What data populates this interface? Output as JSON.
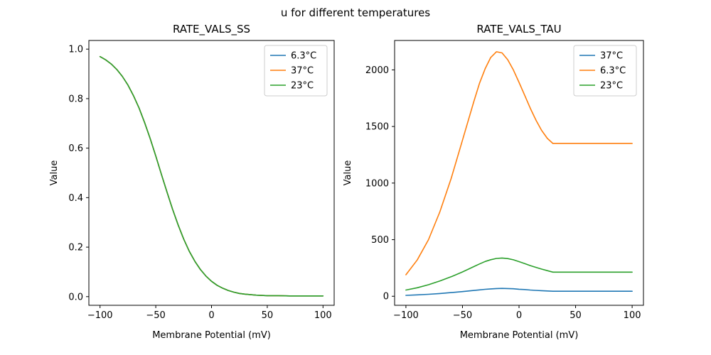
{
  "suptitle": "u for different temperatures",
  "chart_data": [
    {
      "type": "line",
      "title": "RATE_VALS_SS",
      "xlabel": "Membrane Potential (mV)",
      "ylabel": "Value",
      "xlim": [
        -110,
        110
      ],
      "ylim": [
        -0.035,
        1.035
      ],
      "grid": false,
      "legend_position": "upper right",
      "xticks": [
        {
          "v": -100,
          "label": "−100"
        },
        {
          "v": -50,
          "label": "−50"
        },
        {
          "v": 0,
          "label": "0"
        },
        {
          "v": 50,
          "label": "50"
        },
        {
          "v": 100,
          "label": "100"
        }
      ],
      "yticks": [
        {
          "v": 0.0,
          "label": "0.0"
        },
        {
          "v": 0.2,
          "label": "0.2"
        },
        {
          "v": 0.4,
          "label": "0.4"
        },
        {
          "v": 0.6,
          "label": "0.6"
        },
        {
          "v": 0.8,
          "label": "0.8"
        },
        {
          "v": 1.0,
          "label": "1.0"
        }
      ],
      "x": [
        -100,
        -95,
        -90,
        -85,
        -80,
        -75,
        -70,
        -65,
        -60,
        -55,
        -50,
        -45,
        -40,
        -35,
        -30,
        -25,
        -20,
        -15,
        -10,
        -5,
        0,
        5,
        10,
        15,
        20,
        25,
        30,
        40,
        50,
        60,
        70,
        80,
        90,
        100
      ],
      "series": [
        {
          "name": "6.3°C",
          "color": "#1f77b4",
          "y": [
            0.97,
            0.957,
            0.94,
            0.918,
            0.89,
            0.855,
            0.812,
            0.762,
            0.703,
            0.638,
            0.568,
            0.495,
            0.423,
            0.354,
            0.29,
            0.233,
            0.184,
            0.143,
            0.11,
            0.083,
            0.062,
            0.046,
            0.034,
            0.025,
            0.018,
            0.013,
            0.01,
            0.006,
            0.004,
            0.004,
            0.003,
            0.003,
            0.003,
            0.003
          ]
        },
        {
          "name": "37°C",
          "color": "#ff7f0e",
          "y": [
            0.97,
            0.957,
            0.94,
            0.918,
            0.89,
            0.855,
            0.812,
            0.762,
            0.703,
            0.638,
            0.568,
            0.495,
            0.423,
            0.354,
            0.29,
            0.233,
            0.184,
            0.143,
            0.11,
            0.083,
            0.062,
            0.046,
            0.034,
            0.025,
            0.018,
            0.013,
            0.01,
            0.006,
            0.004,
            0.004,
            0.003,
            0.003,
            0.003,
            0.003
          ]
        },
        {
          "name": "23°C",
          "color": "#2ca02c",
          "y": [
            0.97,
            0.957,
            0.94,
            0.918,
            0.89,
            0.855,
            0.812,
            0.762,
            0.703,
            0.638,
            0.568,
            0.495,
            0.423,
            0.354,
            0.29,
            0.233,
            0.184,
            0.143,
            0.11,
            0.083,
            0.062,
            0.046,
            0.034,
            0.025,
            0.018,
            0.013,
            0.01,
            0.006,
            0.004,
            0.004,
            0.003,
            0.003,
            0.003,
            0.003
          ]
        }
      ]
    },
    {
      "type": "line",
      "title": "RATE_VALS_TAU",
      "xlabel": "Membrane Potential (mV)",
      "ylabel": "Value",
      "xlim": [
        -110,
        110
      ],
      "ylim": [
        -80,
        2260
      ],
      "grid": false,
      "legend_position": "upper right",
      "xticks": [
        {
          "v": -100,
          "label": "−100"
        },
        {
          "v": -50,
          "label": "−50"
        },
        {
          "v": 0,
          "label": "0"
        },
        {
          "v": 50,
          "label": "50"
        },
        {
          "v": 100,
          "label": "100"
        }
      ],
      "yticks": [
        {
          "v": 0,
          "label": "0"
        },
        {
          "v": 500,
          "label": "500"
        },
        {
          "v": 1000,
          "label": "1000"
        },
        {
          "v": 1500,
          "label": "1500"
        },
        {
          "v": 2000,
          "label": "2000"
        }
      ],
      "x": [
        -100,
        -90,
        -80,
        -70,
        -60,
        -50,
        -40,
        -35,
        -30,
        -25,
        -20,
        -15,
        -10,
        -5,
        0,
        5,
        10,
        15,
        20,
        25,
        30,
        40,
        50,
        60,
        70,
        80,
        90,
        100
      ],
      "series": [
        {
          "name": "37°C",
          "color": "#1f77b4",
          "y": [
            8,
            12,
            17,
            24,
            32,
            41,
            51,
            56,
            61,
            65,
            68,
            69,
            68,
            66,
            62,
            59,
            55,
            52,
            49,
            47,
            44,
            44,
            44,
            44,
            44,
            44,
            44,
            44
          ]
        },
        {
          "name": "6.3°C",
          "color": "#ff7f0e",
          "y": [
            190,
            320,
            500,
            745,
            1040,
            1380,
            1720,
            1880,
            2010,
            2110,
            2160,
            2150,
            2090,
            2000,
            1890,
            1775,
            1660,
            1555,
            1465,
            1395,
            1350,
            1350,
            1350,
            1350,
            1350,
            1350,
            1350,
            1350
          ]
        },
        {
          "name": "23°C",
          "color": "#2ca02c",
          "y": [
            55,
            75,
            102,
            135,
            172,
            215,
            262,
            285,
            307,
            323,
            334,
            338,
            333,
            322,
            306,
            289,
            271,
            255,
            240,
            226,
            213,
            213,
            213,
            213,
            213,
            213,
            213,
            213
          ]
        }
      ]
    }
  ]
}
